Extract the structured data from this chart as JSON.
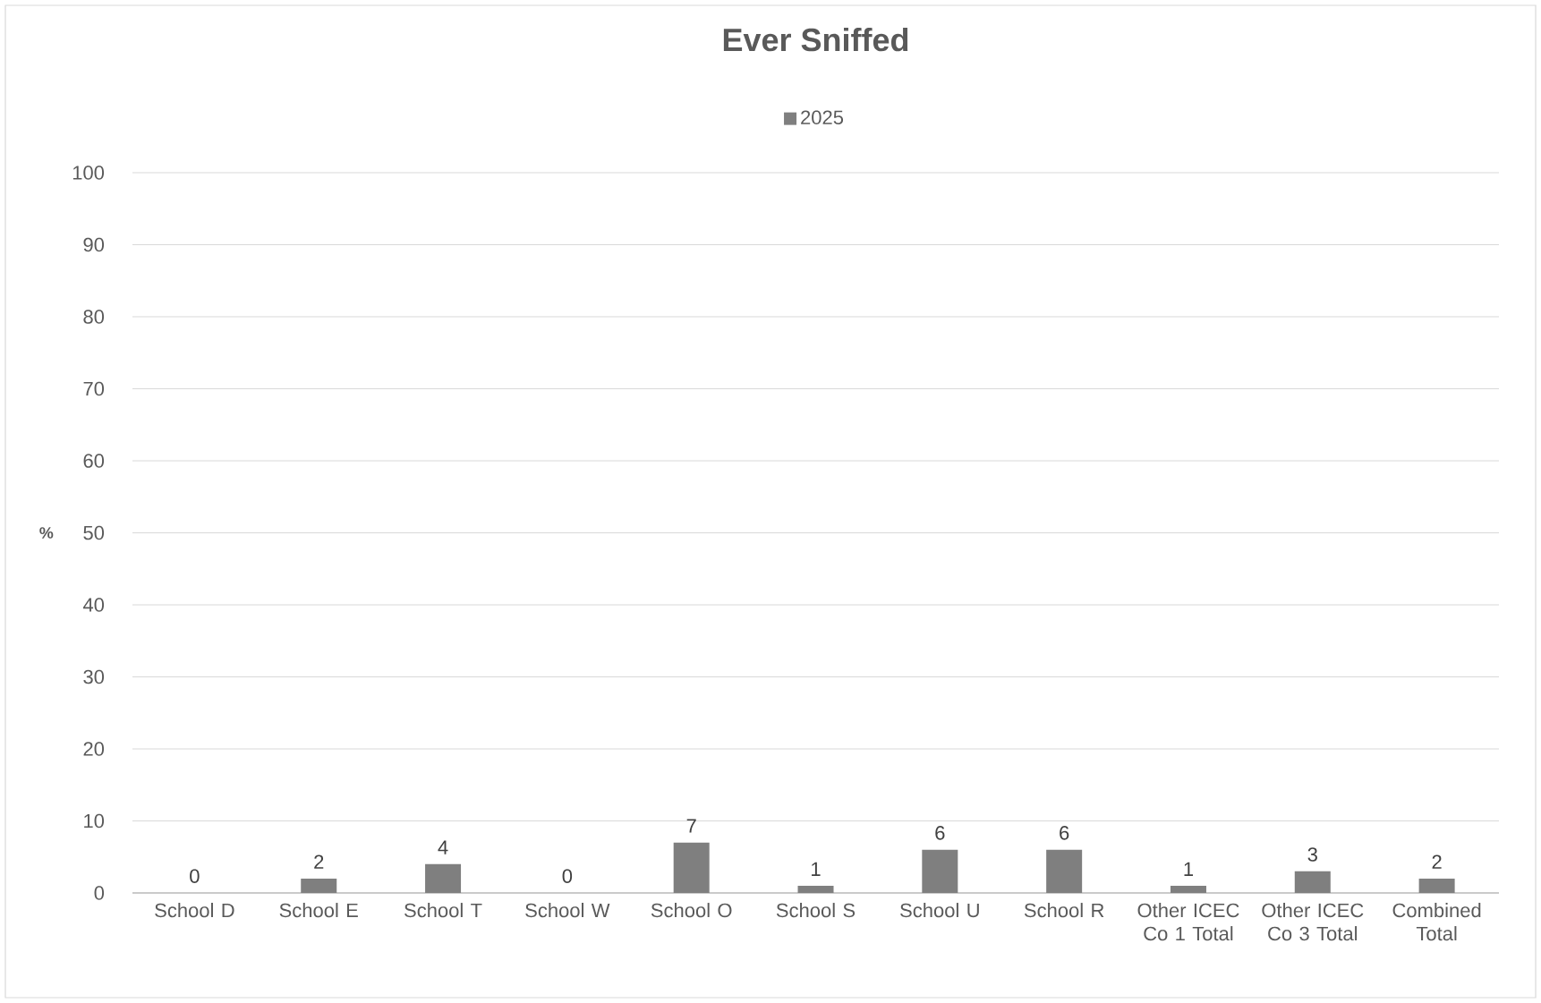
{
  "chart_data": {
    "type": "bar",
    "title": "Ever Sniffed",
    "ylabel": "%",
    "categories": [
      "School D",
      "School E",
      "School T",
      "School W",
      "School O",
      "School S",
      "School U",
      "School R",
      "Other ICEC Co 1 Total",
      "Other ICEC Co 3 Total",
      "Combined Total"
    ],
    "series": [
      {
        "name": "2025",
        "color": "#7f7f7f",
        "values": [
          0,
          2,
          4,
          0,
          7,
          1,
          6,
          6,
          1,
          3,
          2
        ]
      }
    ],
    "ylim": [
      0,
      100
    ],
    "yticks": [
      0,
      10,
      20,
      30,
      40,
      50,
      60,
      70,
      80,
      90,
      100
    ],
    "grid": "y",
    "legend": "top",
    "data_labels": true
  }
}
